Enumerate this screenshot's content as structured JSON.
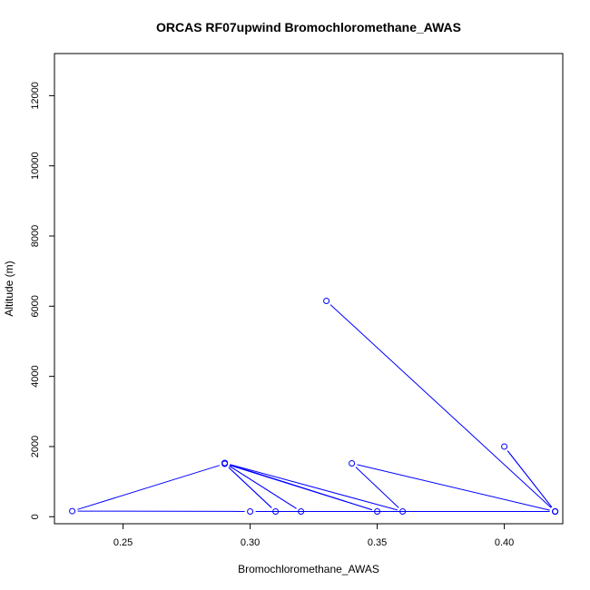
{
  "chart_data": {
    "type": "line",
    "title": "ORCAS RF07upwind Bromochloromethane_AWAS",
    "xlabel": "Bromochloromethane_AWAS",
    "ylabel": "Altitude (m)",
    "xlim": [
      0.223,
      0.423
    ],
    "ylim": [
      -200,
      13200
    ],
    "x_ticks": [
      0.25,
      0.3,
      0.35,
      0.4
    ],
    "x_tick_labels": [
      "0.25",
      "0.30",
      "0.35",
      "0.40"
    ],
    "y_ticks": [
      0,
      2000,
      4000,
      6000,
      8000,
      10000,
      12000
    ],
    "y_tick_labels": [
      "0",
      "2000",
      "4000",
      "6000",
      "8000",
      "10000",
      "12000"
    ],
    "grid": false,
    "series": [
      {
        "color": "#0000ff",
        "marker": "open-circle",
        "x": [
          0.33,
          0.42,
          0.4,
          0.42,
          0.34,
          0.36,
          0.29,
          0.32,
          0.29,
          0.35,
          0.29,
          0.31,
          0.29,
          0.23,
          0.3,
          0.42
        ],
        "y": [
          6150,
          150,
          2000,
          150,
          1520,
          150,
          1530,
          150,
          1530,
          150,
          1510,
          150,
          1510,
          160,
          150,
          150
        ]
      }
    ]
  }
}
